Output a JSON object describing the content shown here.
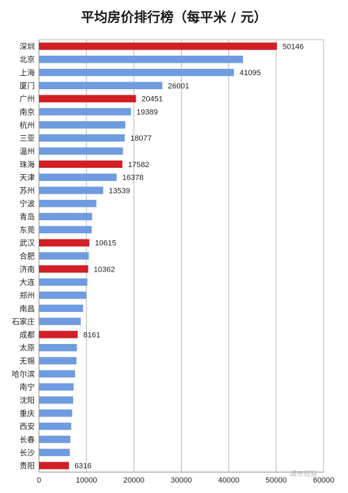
{
  "chart_data": {
    "type": "bar",
    "orientation": "horizontal",
    "title": "平均房价排行榜（每平米 / 元）",
    "categories": [
      "深圳",
      "北京",
      "上海",
      "厦门",
      "广州",
      "南京",
      "杭州",
      "三亚",
      "温州",
      "珠海",
      "天津",
      "苏州",
      "宁波",
      "青岛",
      "东莞",
      "武汉",
      "合肥",
      "济南",
      "大连",
      "郑州",
      "南昌",
      "石家庄",
      "成都",
      "太原",
      "无锡",
      "哈尔滨",
      "南宁",
      "沈阳",
      "重庆",
      "西安",
      "长春",
      "长沙",
      "贵阳"
    ],
    "values": [
      50146,
      43000,
      41095,
      26001,
      20451,
      19389,
      18200,
      18077,
      17700,
      17582,
      16378,
      13539,
      12100,
      11200,
      11100,
      10615,
      10500,
      10362,
      10200,
      10000,
      9300,
      8800,
      8161,
      8000,
      7900,
      7600,
      7300,
      7200,
      7000,
      6800,
      6600,
      6500,
      6316
    ],
    "highlighted": [
      "深圳",
      "广州",
      "珠海",
      "武汉",
      "济南",
      "成都",
      "贵阳"
    ],
    "data_labels": {
      "深圳": "50146",
      "上海": "41095",
      "厦门": "26001",
      "广州": "20451",
      "南京": "19389",
      "三亚": "18077",
      "珠海": "17582",
      "天津": "16378",
      "苏州": "13539",
      "武汉": "10615",
      "济南": "10362",
      "成都": "8161",
      "贵阳": "6316"
    },
    "xlim": [
      0,
      60000
    ],
    "xticks": [
      0,
      10000,
      20000,
      30000,
      40000,
      50000,
      60000
    ],
    "grid": true,
    "colors": {
      "default": "#6f9be0",
      "highlight": "#d11f25",
      "grid": "#b5b5b5",
      "axis": "#888888"
    }
  },
  "watermark": "城市观察"
}
